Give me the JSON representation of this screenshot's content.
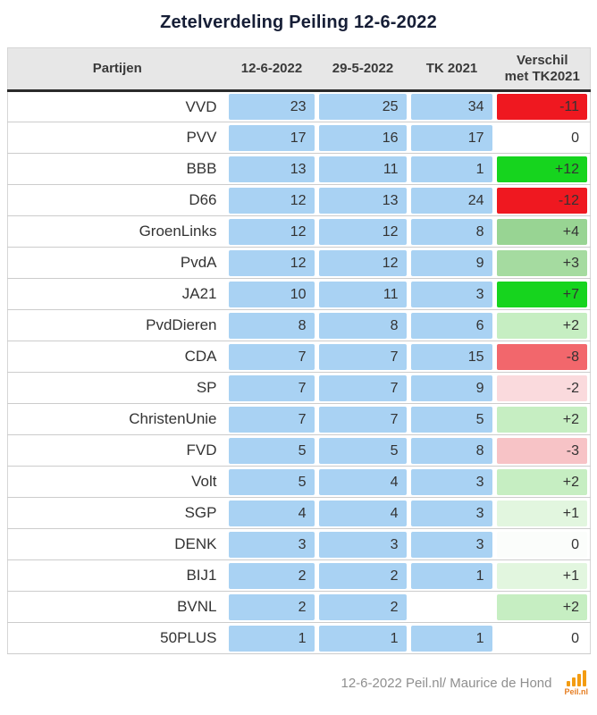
{
  "chart_data": {
    "type": "table",
    "title": "Zetelverdeling Peiling 12-6-2022",
    "columns": [
      "Partijen",
      "12-6-2022",
      "29-5-2022",
      "TK 2021",
      "Verschil met TK2021"
    ],
    "rows": [
      {
        "party": "VVD",
        "c1": 23,
        "c2": 25,
        "tk": 34,
        "diff": "-11",
        "diff_color": "#ef1820"
      },
      {
        "party": "PVV",
        "c1": 17,
        "c2": 16,
        "tk": 17,
        "diff": "0",
        "diff_color": "#ffffff"
      },
      {
        "party": "BBB",
        "c1": 13,
        "c2": 11,
        "tk": 1,
        "diff": "+12",
        "diff_color": "#16d41e"
      },
      {
        "party": "D66",
        "c1": 12,
        "c2": 13,
        "tk": 24,
        "diff": "-12",
        "diff_color": "#ef1820"
      },
      {
        "party": "GroenLinks",
        "c1": 12,
        "c2": 12,
        "tk": 8,
        "diff": "+4",
        "diff_color": "#98d493"
      },
      {
        "party": "PvdA",
        "c1": 12,
        "c2": 12,
        "tk": 9,
        "diff": "+3",
        "diff_color": "#a5dba0"
      },
      {
        "party": "JA21",
        "c1": 10,
        "c2": 11,
        "tk": 3,
        "diff": "+7",
        "diff_color": "#16d41e"
      },
      {
        "party": "PvdDieren",
        "c1": 8,
        "c2": 8,
        "tk": 6,
        "diff": "+2",
        "diff_color": "#c6eec2"
      },
      {
        "party": "CDA",
        "c1": 7,
        "c2": 7,
        "tk": 15,
        "diff": "-8",
        "diff_color": "#f2676c"
      },
      {
        "party": "SP",
        "c1": 7,
        "c2": 7,
        "tk": 9,
        "diff": "-2",
        "diff_color": "#fadadd"
      },
      {
        "party": "ChristenUnie",
        "c1": 7,
        "c2": 7,
        "tk": 5,
        "diff": "+2",
        "diff_color": "#c6eec2"
      },
      {
        "party": "FVD",
        "c1": 5,
        "c2": 5,
        "tk": 8,
        "diff": "-3",
        "diff_color": "#f7c3c6"
      },
      {
        "party": "Volt",
        "c1": 5,
        "c2": 4,
        "tk": 3,
        "diff": "+2",
        "diff_color": "#c6eec2"
      },
      {
        "party": "SGP",
        "c1": 4,
        "c2": 4,
        "tk": 3,
        "diff": "+1",
        "diff_color": "#e2f6df"
      },
      {
        "party": "DENK",
        "c1": 3,
        "c2": 3,
        "tk": 3,
        "diff": "0",
        "diff_color": "#fbfdfb"
      },
      {
        "party": "BIJ1",
        "c1": 2,
        "c2": 2,
        "tk": 1,
        "diff": "+1",
        "diff_color": "#e2f6df"
      },
      {
        "party": "BVNL",
        "c1": 2,
        "c2": 2,
        "tk": null,
        "diff": "+2",
        "diff_color": "#c6eec2"
      },
      {
        "party": "50PLUS",
        "c1": 1,
        "c2": 1,
        "tk": 1,
        "diff": "0",
        "diff_color": "#ffffff"
      }
    ]
  },
  "header_verschil": {
    "line1": "Verschil",
    "line2": "met TK2021"
  },
  "colors": {
    "cell_blue": "#a9d2f3",
    "header_bg": "#e7e7e7"
  },
  "footer": {
    "credit": "12-6-2022 Peil.nl/ Maurice de Hond",
    "logo_text": "Peil.nl"
  }
}
